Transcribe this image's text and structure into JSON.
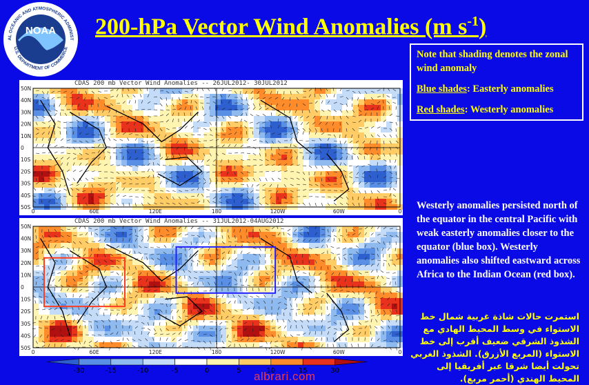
{
  "logo": {
    "text_top": "NATIONAL OCEANIC AND ATMOSPHERIC ADMINISTRATION",
    "text_center": "NOAA",
    "text_bottom": "U.S. DEPARTMENT OF COMMERCE"
  },
  "title": {
    "main": "200-hPa Vector Wind Anomalies (m s",
    "sup": "-1",
    "close": ")"
  },
  "note": {
    "line1": "Note that shading denotes the zonal wind anomaly",
    "blue_label": "Blue shades",
    "blue_text": ": Easterly anomalies",
    "red_label": "Red shades",
    "red_text": ": Westerly anomalies"
  },
  "panels": [
    {
      "title": "CDAS 200 mb Vector Wind Anomalies -- 26JUL2012- 30JUL2012"
    },
    {
      "title": "CDAS 200 mb Vector Wind Anomalies -- 31JUL2012-04AUG2012"
    }
  ],
  "lat_labels": [
    "50N",
    "40N",
    "30N",
    "20N",
    "10N",
    "0",
    "10S",
    "20S",
    "30S",
    "40S",
    "50S"
  ],
  "lon_labels": [
    "0",
    "60E",
    "120E",
    "180",
    "120W",
    "60W",
    "0"
  ],
  "colorbar": {
    "ticks": [
      "-30",
      "-15",
      "-10",
      "-5",
      "0",
      "5",
      "10",
      "15",
      "30"
    ],
    "colors": [
      "#2e5fcf",
      "#5a8fe6",
      "#8fbaf0",
      "#c4dcf7",
      "#ffffff",
      "#fff5b0",
      "#ffcc66",
      "#ff8c2a",
      "#e8321c",
      "#b01010"
    ]
  },
  "en_text": "Westerly anomalies persisted north of the equator in the central Pacific with weak easterly anomalies closer to the equator (blue box). Westerly anomalies also shifted eastward across Africa to the Indian Ocean (red box).",
  "ar_text": "استمرت حالات شاذة غربية شمال خط الاستواء في وسط المحيط الهادي مع الشذوذ الشرقي ضعيف أقرب إلى خط الاستواء (المربع الأزرق). الشذوذ الغربي تحولت أيضا شرقا عبر أفريقيا إلى المحيط الهندي (أحمر مربع).",
  "watermark": "albrari.com",
  "colors": {
    "background": "#0a0ae6",
    "title": "#ffff00",
    "note_border": "#ffffff"
  }
}
